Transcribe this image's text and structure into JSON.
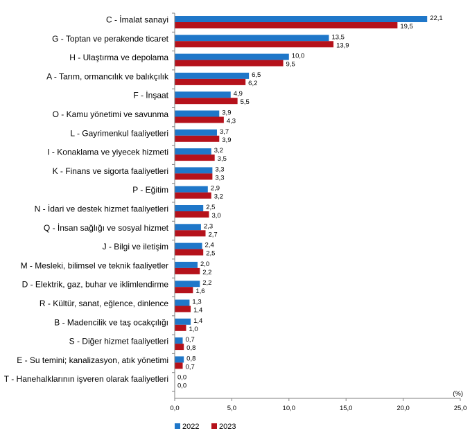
{
  "chart_data": {
    "type": "bar",
    "orientation": "horizontal",
    "unit_label": "(%)",
    "categories": [
      "C - İmalat sanayi",
      "G - Toptan ve perakende ticaret",
      "H - Ulaştırma ve depolama",
      "A - Tarım, ormancılık ve balıkçılık",
      "F - İnşaat",
      "O - Kamu yönetimi ve savunma",
      "L - Gayrimenkul faaliyetleri",
      "I - Konaklama ve yiyecek hizmeti",
      "K - Finans ve sigorta faaliyetleri",
      "P - Eğitim",
      "N - İdari ve destek hizmet faaliyetleri",
      "Q - İnsan sağlığı ve sosyal hizmet",
      "J - Bilgi ve iletişim",
      "M - Mesleki, bilimsel ve teknik faaliyetler",
      "D - Elektrik, gaz, buhar ve iklimlendirme",
      "R - Kültür, sanat, eğlence, dinlence",
      "B - Madencilik ve taş ocakçılığı",
      "S - Diğer hizmet faaliyetleri",
      "E - Su temini; kanalizasyon, atık yönetimi",
      "T - Hanehalklarının işveren olarak faaliyetleri"
    ],
    "series": [
      {
        "name": "2022",
        "color": "#1f77c9",
        "values": [
          22.1,
          13.5,
          10.0,
          6.5,
          4.9,
          3.9,
          3.7,
          3.2,
          3.3,
          2.9,
          2.5,
          2.3,
          2.4,
          2.0,
          2.2,
          1.3,
          1.4,
          0.7,
          0.8,
          0.0
        ],
        "value_labels": [
          "22,1",
          "13,5",
          "10,0",
          "6,5",
          "4,9",
          "3,9",
          "3,7",
          "3,2",
          "3,3",
          "2,9",
          "2,5",
          "2,3",
          "2,4",
          "2,0",
          "2,2",
          "1,3",
          "1,4",
          "0,7",
          "0,8",
          "0,0"
        ]
      },
      {
        "name": "2023",
        "color": "#b5121b",
        "values": [
          19.5,
          13.9,
          9.5,
          6.2,
          5.5,
          4.3,
          3.9,
          3.5,
          3.3,
          3.2,
          3.0,
          2.7,
          2.5,
          2.2,
          1.6,
          1.4,
          1.0,
          0.8,
          0.7,
          0.0
        ],
        "value_labels": [
          "19,5",
          "13,9",
          "9,5",
          "6,2",
          "5,5",
          "4,3",
          "3,9",
          "3,5",
          "3,3",
          "3,2",
          "3,0",
          "2,7",
          "2,5",
          "2,2",
          "1,6",
          "1,4",
          "1,0",
          "0,8",
          "0,7",
          "0,0"
        ]
      }
    ],
    "xlim": [
      0,
      25
    ],
    "x_ticks": [
      0,
      5,
      10,
      15,
      20,
      25
    ],
    "x_tick_labels": [
      "0,0",
      "5,0",
      "10,0",
      "15,0",
      "20,0",
      "25,0"
    ],
    "grid": false,
    "legend_position": "bottom-left"
  }
}
